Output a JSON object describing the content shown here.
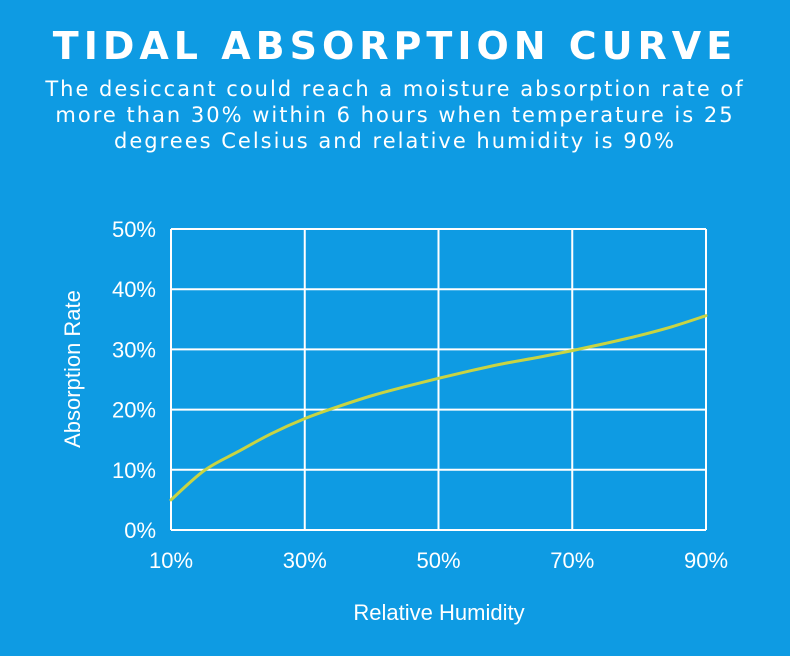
{
  "chart_data": {
    "type": "line",
    "title": "TIDAL ABSORPTION CURVE",
    "subtitle": "The desiccant could reach a moisture absorption rate of more than 30% within 6 hours when temperature is 25 degrees Celsius and relative humidity is 90%",
    "xlabel": "Relative Humidity",
    "ylabel": "Absorption Rate",
    "xlim": [
      10,
      90
    ],
    "ylim": [
      0,
      50
    ],
    "x_ticks": [
      10,
      30,
      50,
      70,
      90
    ],
    "x_tick_labels": [
      "10%",
      "30%",
      "50%",
      "70%",
      "90%"
    ],
    "y_ticks": [
      0,
      10,
      20,
      30,
      40,
      50
    ],
    "y_tick_labels": [
      "0%",
      "10%",
      "20%",
      "30%",
      "40%",
      "50%"
    ],
    "grid": true,
    "series": [
      {
        "name": "Absorption Rate",
        "color": "#c8d443",
        "x": [
          10,
          15,
          20,
          25,
          30,
          35,
          40,
          45,
          50,
          55,
          60,
          65,
          70,
          75,
          80,
          85,
          90
        ],
        "y": [
          5,
          9.9,
          13.0,
          16.0,
          18.5,
          20.5,
          22.3,
          23.8,
          25.2,
          26.5,
          27.7,
          28.7,
          29.8,
          31.0,
          32.3,
          33.8,
          35.6
        ]
      }
    ]
  }
}
